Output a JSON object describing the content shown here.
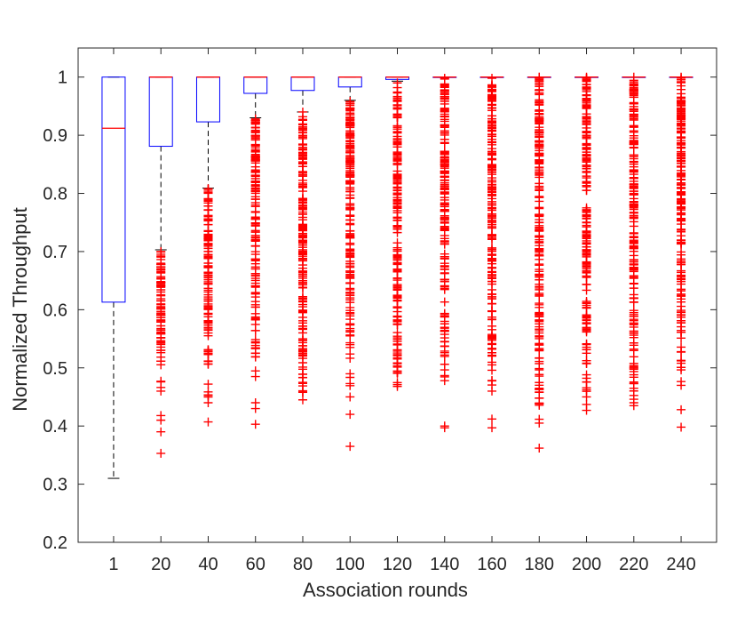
{
  "chart_data": {
    "type": "box",
    "title": "",
    "xlabel": "Association rounds",
    "ylabel": "Normalized Throughput",
    "ylim": [
      0.2,
      1.05
    ],
    "yticks": [
      "0.2",
      "0.3",
      "0.4",
      "0.5",
      "0.6",
      "0.7",
      "0.8",
      "0.9",
      "1"
    ],
    "categories": [
      "1",
      "20",
      "40",
      "60",
      "80",
      "100",
      "120",
      "140",
      "160",
      "180",
      "200",
      "220",
      "240"
    ],
    "boxes": [
      {
        "q1": 0.613,
        "median": 0.912,
        "q3": 1.0,
        "whisker_low": 0.31,
        "whisker_high": 1.0,
        "outliers": {
          "min": null,
          "max": null,
          "extra": []
        }
      },
      {
        "q1": 0.881,
        "median": 1.0,
        "q3": 1.0,
        "whisker_low": 0.703,
        "whisker_high": 1.0,
        "outliers": {
          "min": 0.46,
          "max": 0.7,
          "extra": [
            0.418,
            0.41,
            0.39,
            0.353
          ]
        }
      },
      {
        "q1": 0.923,
        "median": 1.0,
        "q3": 1.0,
        "whisker_low": 0.809,
        "whisker_high": 1.0,
        "outliers": {
          "min": 0.44,
          "max": 0.808,
          "extra": [
            0.407
          ]
        }
      },
      {
        "q1": 0.972,
        "median": 1.0,
        "q3": 1.0,
        "whisker_low": 0.93,
        "whisker_high": 1.0,
        "outliers": {
          "min": 0.485,
          "max": 0.928,
          "extra": [
            0.44,
            0.43,
            0.403
          ]
        }
      },
      {
        "q1": 0.977,
        "median": 1.0,
        "q3": 1.0,
        "whisker_low": 0.94,
        "whisker_high": 1.0,
        "outliers": {
          "min": 0.445,
          "max": 0.94,
          "extra": []
        }
      },
      {
        "q1": 0.983,
        "median": 1.0,
        "q3": 1.0,
        "whisker_low": 0.96,
        "whisker_high": 1.0,
        "outliers": {
          "min": 0.45,
          "max": 0.958,
          "extra": [
            0.42,
            0.365
          ]
        }
      },
      {
        "q1": 0.996,
        "median": 1.0,
        "q3": 1.0,
        "whisker_low": 0.993,
        "whisker_high": 1.0,
        "outliers": {
          "min": 0.468,
          "max": 0.99,
          "extra": []
        }
      },
      {
        "q1": 1.0,
        "median": 1.0,
        "q3": 1.0,
        "whisker_low": 1.0,
        "whisker_high": 1.0,
        "outliers": {
          "min": 0.478,
          "max": 0.998,
          "extra": [
            0.4,
            0.397
          ]
        }
      },
      {
        "q1": 1.0,
        "median": 1.0,
        "q3": 1.0,
        "whisker_low": 1.0,
        "whisker_high": 1.0,
        "outliers": {
          "min": 0.46,
          "max": 0.998,
          "extra": [
            0.412,
            0.397
          ]
        }
      },
      {
        "q1": 1.0,
        "median": 1.0,
        "q3": 1.0,
        "whisker_low": 1.0,
        "whisker_high": 1.0,
        "outliers": {
          "min": 0.405,
          "max": 1.0,
          "extra": [
            0.362
          ]
        }
      },
      {
        "q1": 1.0,
        "median": 1.0,
        "q3": 1.0,
        "whisker_low": 1.0,
        "whisker_high": 1.0,
        "outliers": {
          "min": 0.45,
          "max": 1.0,
          "extra": [
            0.437,
            0.427
          ]
        }
      },
      {
        "q1": 1.0,
        "median": 1.0,
        "q3": 1.0,
        "whisker_low": 1.0,
        "whisker_high": 1.0,
        "outliers": {
          "min": 0.44,
          "max": 1.0,
          "extra": [
            0.435
          ]
        }
      },
      {
        "q1": 1.0,
        "median": 1.0,
        "q3": 1.0,
        "whisker_low": 1.0,
        "whisker_high": 1.0,
        "outliers": {
          "min": 0.47,
          "max": 1.0,
          "extra": [
            0.428,
            0.398
          ]
        }
      }
    ],
    "colors": {
      "box": "#0000ff",
      "median": "#ff0000",
      "whisker": "#000000",
      "outlier": "#ff0000",
      "axis": "#262626"
    },
    "grid": false,
    "legend": "none"
  }
}
